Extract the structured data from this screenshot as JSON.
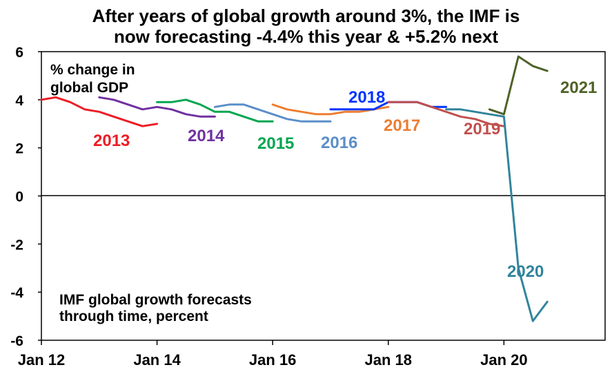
{
  "chart_data": {
    "type": "line",
    "title": [
      "After years of global growth around 3%, the IMF is",
      "now forecasting -4.4% this year & +5.2% next"
    ],
    "ylabel": [
      "% change in",
      "global GDP"
    ],
    "annotation": [
      "IMF global growth forecasts",
      "through time, percent"
    ],
    "ylim": [
      -6,
      6
    ],
    "yticks": [
      "6",
      "4",
      "2",
      "0",
      "-2",
      "-4",
      "-6"
    ],
    "xlim": [
      "2012-01",
      "2021-10"
    ],
    "xticks": [
      {
        "date": "2012-01",
        "label": "Jan 12"
      },
      {
        "date": "2014-01",
        "label": "Jan 14"
      },
      {
        "date": "2016-01",
        "label": "Jan 16"
      },
      {
        "date": "2018-01",
        "label": "Jan 18"
      },
      {
        "date": "2020-01",
        "label": "Jan 20"
      }
    ],
    "grid": false,
    "series": [
      {
        "name": "2013",
        "color": "#ee1c25",
        "x": [
          "2012-01",
          "2012-04",
          "2012-07",
          "2012-10",
          "2013-01",
          "2013-04",
          "2013-07",
          "2013-10",
          "2014-01"
        ],
        "y": [
          4.0,
          4.1,
          3.9,
          3.6,
          3.5,
          3.3,
          3.1,
          2.9,
          3.0
        ]
      },
      {
        "name": "2014",
        "color": "#7030a0",
        "x": [
          "2013-01",
          "2013-04",
          "2013-07",
          "2013-10",
          "2014-01",
          "2014-04",
          "2014-07",
          "2014-10",
          "2015-01"
        ],
        "y": [
          4.1,
          4.0,
          3.8,
          3.6,
          3.7,
          3.6,
          3.4,
          3.3,
          3.3
        ]
      },
      {
        "name": "2015",
        "color": "#00a650",
        "x": [
          "2014-01",
          "2014-04",
          "2014-07",
          "2014-10",
          "2015-01",
          "2015-04",
          "2015-07",
          "2015-10",
          "2016-01"
        ],
        "y": [
          3.9,
          3.9,
          4.0,
          3.8,
          3.5,
          3.5,
          3.3,
          3.1,
          3.1
        ]
      },
      {
        "name": "2016",
        "color": "#5b8ec9",
        "x": [
          "2015-01",
          "2015-04",
          "2015-07",
          "2015-10",
          "2016-01",
          "2016-04",
          "2016-07",
          "2016-10",
          "2017-01"
        ],
        "y": [
          3.7,
          3.8,
          3.8,
          3.6,
          3.4,
          3.2,
          3.1,
          3.1,
          3.1
        ]
      },
      {
        "name": "2017",
        "color": "#ed7d31",
        "x": [
          "2016-01",
          "2016-04",
          "2016-07",
          "2016-10",
          "2017-01",
          "2017-04",
          "2017-07",
          "2017-10",
          "2018-01"
        ],
        "y": [
          3.8,
          3.6,
          3.5,
          3.4,
          3.4,
          3.5,
          3.5,
          3.6,
          3.7
        ]
      },
      {
        "name": "2018",
        "color": "#0033ff",
        "x": [
          "2017-01",
          "2017-04",
          "2017-07",
          "2017-10",
          "2018-01",
          "2018-04",
          "2018-07",
          "2018-10",
          "2019-01"
        ],
        "y": [
          3.6,
          3.6,
          3.6,
          3.6,
          3.9,
          3.9,
          3.9,
          3.7,
          3.7
        ]
      },
      {
        "name": "2019",
        "color": "#c0504d",
        "x": [
          "2018-01",
          "2018-04",
          "2018-07",
          "2018-10",
          "2019-01",
          "2019-04",
          "2019-07",
          "2019-10",
          "2020-01"
        ],
        "y": [
          3.9,
          3.9,
          3.9,
          3.7,
          3.5,
          3.3,
          3.2,
          3.0,
          2.9
        ]
      },
      {
        "name": "2020",
        "color": "#31849b",
        "x": [
          "2019-01",
          "2019-04",
          "2019-07",
          "2019-10",
          "2020-01",
          "2020-04",
          "2020-07",
          "2020-10"
        ],
        "y": [
          3.6,
          3.6,
          3.5,
          3.4,
          3.3,
          -3.0,
          -5.2,
          -4.4
        ]
      },
      {
        "name": "2021",
        "color": "#4f6228",
        "x": [
          "2019-10",
          "2020-01",
          "2020-04",
          "2020-07",
          "2020-10"
        ],
        "y": [
          3.6,
          3.4,
          5.8,
          5.4,
          5.2
        ]
      }
    ]
  }
}
